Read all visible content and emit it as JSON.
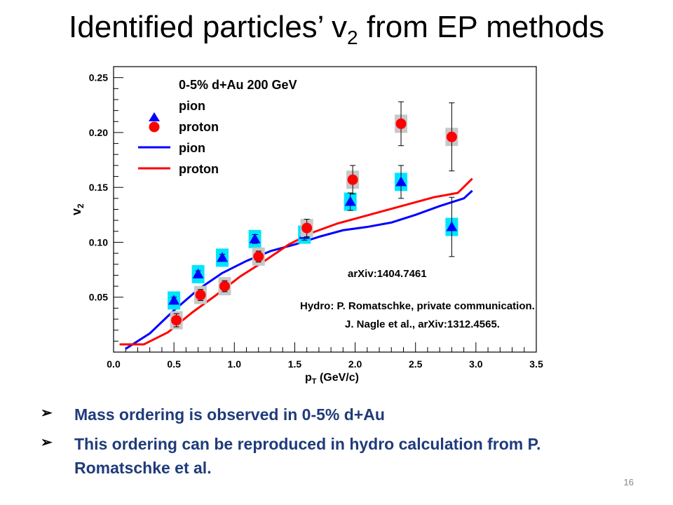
{
  "slide": {
    "title_main": "Identified particles’ v",
    "title_sub": "2",
    "title_rest": " from EP methods",
    "bullets": [
      "Mass ordering is observed in 0-5% d+Au",
      "This ordering can be reproduced in hydro calculation from P. Romatschke et al."
    ],
    "page_number": "16"
  },
  "colors": {
    "pion": "#0000ff",
    "proton": "#ff0000",
    "pion_sys": "#00e5ff",
    "proton_sys": "#c8c8c8"
  },
  "chart_data": {
    "type": "scatter",
    "xlabel": "p",
    "xlabel_sub": "T",
    "xlabel_unit": " (GeV/c)",
    "ylabel": "v",
    "ylabel_sub": "2",
    "xlim": [
      0.0,
      3.5
    ],
    "ylim": [
      0.0,
      0.26
    ],
    "xticks": [
      "0.0",
      "0.5",
      "1.0",
      "1.5",
      "2.0",
      "2.5",
      "3.0",
      "3.5"
    ],
    "yticks": [
      "0.05",
      "0.10",
      "0.15",
      "0.20",
      "0.25"
    ],
    "legend_title": "0-5% d+Au 200 GeV",
    "legend_position": "top-left",
    "legend": [
      "pion",
      "proton",
      "pion",
      "proton"
    ],
    "annotations": [
      "arXiv:1404.7461",
      "Hydro: P. Romatschke, private communication.",
      "J. Nagle et al., arXiv:1312.4565."
    ],
    "series": [
      {
        "name": "pion",
        "kind": "points",
        "x": [
          0.5,
          0.7,
          0.9,
          1.17,
          1.58,
          1.96,
          2.38,
          2.8
        ],
        "y": [
          0.047,
          0.071,
          0.086,
          0.103,
          0.107,
          0.137,
          0.155,
          0.114
        ],
        "err": [
          0.003,
          0.003,
          0.003,
          0.004,
          0.005,
          0.008,
          0.015,
          0.027
        ]
      },
      {
        "name": "proton",
        "kind": "points",
        "x": [
          0.52,
          0.72,
          0.92,
          1.2,
          1.6,
          1.98,
          2.38,
          2.8
        ],
        "y": [
          0.029,
          0.052,
          0.06,
          0.087,
          0.113,
          0.157,
          0.208,
          0.196
        ],
        "err": [
          0.006,
          0.005,
          0.005,
          0.005,
          0.008,
          0.013,
          0.02,
          0.031
        ]
      },
      {
        "name": "pion",
        "kind": "line",
        "x": [
          0.1,
          0.3,
          0.5,
          0.7,
          0.9,
          1.1,
          1.3,
          1.5,
          1.7,
          1.9,
          2.1,
          2.3,
          2.5,
          2.7,
          2.9,
          2.97
        ],
        "y": [
          0.003,
          0.017,
          0.038,
          0.057,
          0.072,
          0.083,
          0.092,
          0.098,
          0.105,
          0.111,
          0.114,
          0.118,
          0.125,
          0.133,
          0.14,
          0.147
        ]
      },
      {
        "name": "proton",
        "kind": "line",
        "x": [
          0.05,
          0.25,
          0.45,
          0.65,
          0.85,
          1.05,
          1.25,
          1.45,
          1.65,
          1.85,
          2.05,
          2.25,
          2.45,
          2.65,
          2.85,
          2.97
        ],
        "y": [
          0.007,
          0.007,
          0.018,
          0.036,
          0.052,
          0.069,
          0.083,
          0.098,
          0.109,
          0.117,
          0.123,
          0.129,
          0.135,
          0.141,
          0.145,
          0.158
        ]
      }
    ]
  }
}
